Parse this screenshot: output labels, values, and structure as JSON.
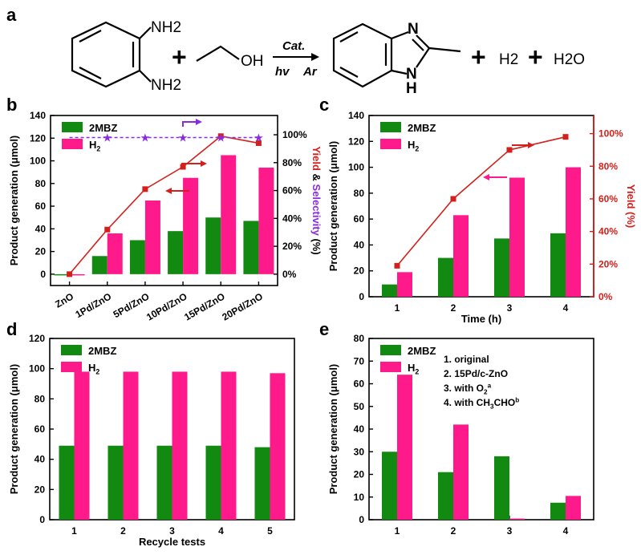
{
  "scheme": {
    "panel_label": "a",
    "nh2_top": "NH2",
    "nh2_bottom": "NH2",
    "oh": "OH",
    "plus1": "+",
    "cat": "Cat.",
    "hv": "hv",
    "ar": "Ar",
    "n_label": "N",
    "h_label": "H",
    "plus2": "+",
    "h2": "H2",
    "plus3": "+",
    "h2o": "H2O"
  },
  "colors": {
    "green": "#128a12",
    "pink": "#ff1a8c",
    "red": "#d4201c",
    "purple": "#8a2be2"
  },
  "chart_data": [
    {
      "panel": "b",
      "type": "bar",
      "categories": [
        "ZnO",
        "1Pd/ZnO",
        "5Pd/ZnO",
        "10Pd/ZnO",
        "15Pd/ZnO",
        "20Pd/ZnO"
      ],
      "series": [
        {
          "name": "2MBZ",
          "values": [
            0,
            16,
            30,
            38,
            50,
            47
          ]
        },
        {
          "name": "H2",
          "values": [
            0,
            36,
            65,
            85,
            105,
            94
          ]
        }
      ],
      "yield_pct": [
        0,
        32,
        61,
        77,
        99,
        94
      ],
      "selectivity_pct": [
        98,
        98,
        98,
        98,
        98,
        98
      ],
      "ylabel": "Product generation (μmol)",
      "y2label": {
        "part1": "Yield",
        "part2": " & ",
        "part3": "Selectivity",
        "part4": " (%)"
      },
      "ylim": [
        -10,
        140
      ],
      "yticks": [
        "0",
        "20",
        "40",
        "60",
        "80",
        "100",
        "120",
        "140"
      ],
      "y2ticks": [
        "0%",
        "20%",
        "40%",
        "60%",
        "80%",
        "100%"
      ],
      "legend": [
        "2MBZ",
        "H2"
      ]
    },
    {
      "panel": "c",
      "type": "bar",
      "categories": [
        "1",
        "2",
        "3",
        "4"
      ],
      "series": [
        {
          "name": "2MBZ",
          "values": [
            9.5,
            30,
            45,
            49
          ]
        },
        {
          "name": "H2",
          "values": [
            19,
            63,
            92,
            100
          ]
        }
      ],
      "yield_pct": [
        19,
        60,
        90,
        98
      ],
      "xlabel": "Time (h)",
      "ylabel": "Product generation (μmol)",
      "y2label": "Yield (%)",
      "ylim": [
        0,
        140
      ],
      "yticks": [
        "0",
        "20",
        "40",
        "60",
        "80",
        "100",
        "120",
        "140"
      ],
      "y2ticks": [
        "0%",
        "20%",
        "40%",
        "60%",
        "80%",
        "100%"
      ],
      "legend": [
        "2MBZ",
        "H2"
      ]
    },
    {
      "panel": "d",
      "type": "bar",
      "categories": [
        "1",
        "2",
        "3",
        "4",
        "5"
      ],
      "series": [
        {
          "name": "2MBZ",
          "values": [
            49,
            49,
            49,
            49,
            48
          ]
        },
        {
          "name": "H2",
          "values": [
            98,
            98,
            98,
            98,
            97
          ]
        }
      ],
      "xlabel": "Recycle tests",
      "ylabel": "Product generation (μmol)",
      "ylim": [
        0,
        120
      ],
      "yticks": [
        "0",
        "20",
        "40",
        "60",
        "80",
        "100",
        "120"
      ],
      "legend": [
        "2MBZ",
        "H2"
      ]
    },
    {
      "panel": "e",
      "type": "bar",
      "categories": [
        "1",
        "2",
        "3",
        "4"
      ],
      "series": [
        {
          "name": "2MBZ",
          "values": [
            30,
            21,
            28,
            7.5
          ]
        },
        {
          "name": "H2",
          "values": [
            64,
            42,
            0.5,
            10.5
          ]
        }
      ],
      "ylabel": "Product generation (μmol)",
      "ylim": [
        0,
        80
      ],
      "yticks": [
        "0",
        "10",
        "20",
        "30",
        "40",
        "50",
        "60",
        "70",
        "80"
      ],
      "legend": [
        "2MBZ",
        "H2"
      ],
      "annotations": [
        "1. original",
        "2. 15Pd/c-ZnO",
        "3. with O2a",
        "4. with CH3CHOb"
      ]
    }
  ]
}
